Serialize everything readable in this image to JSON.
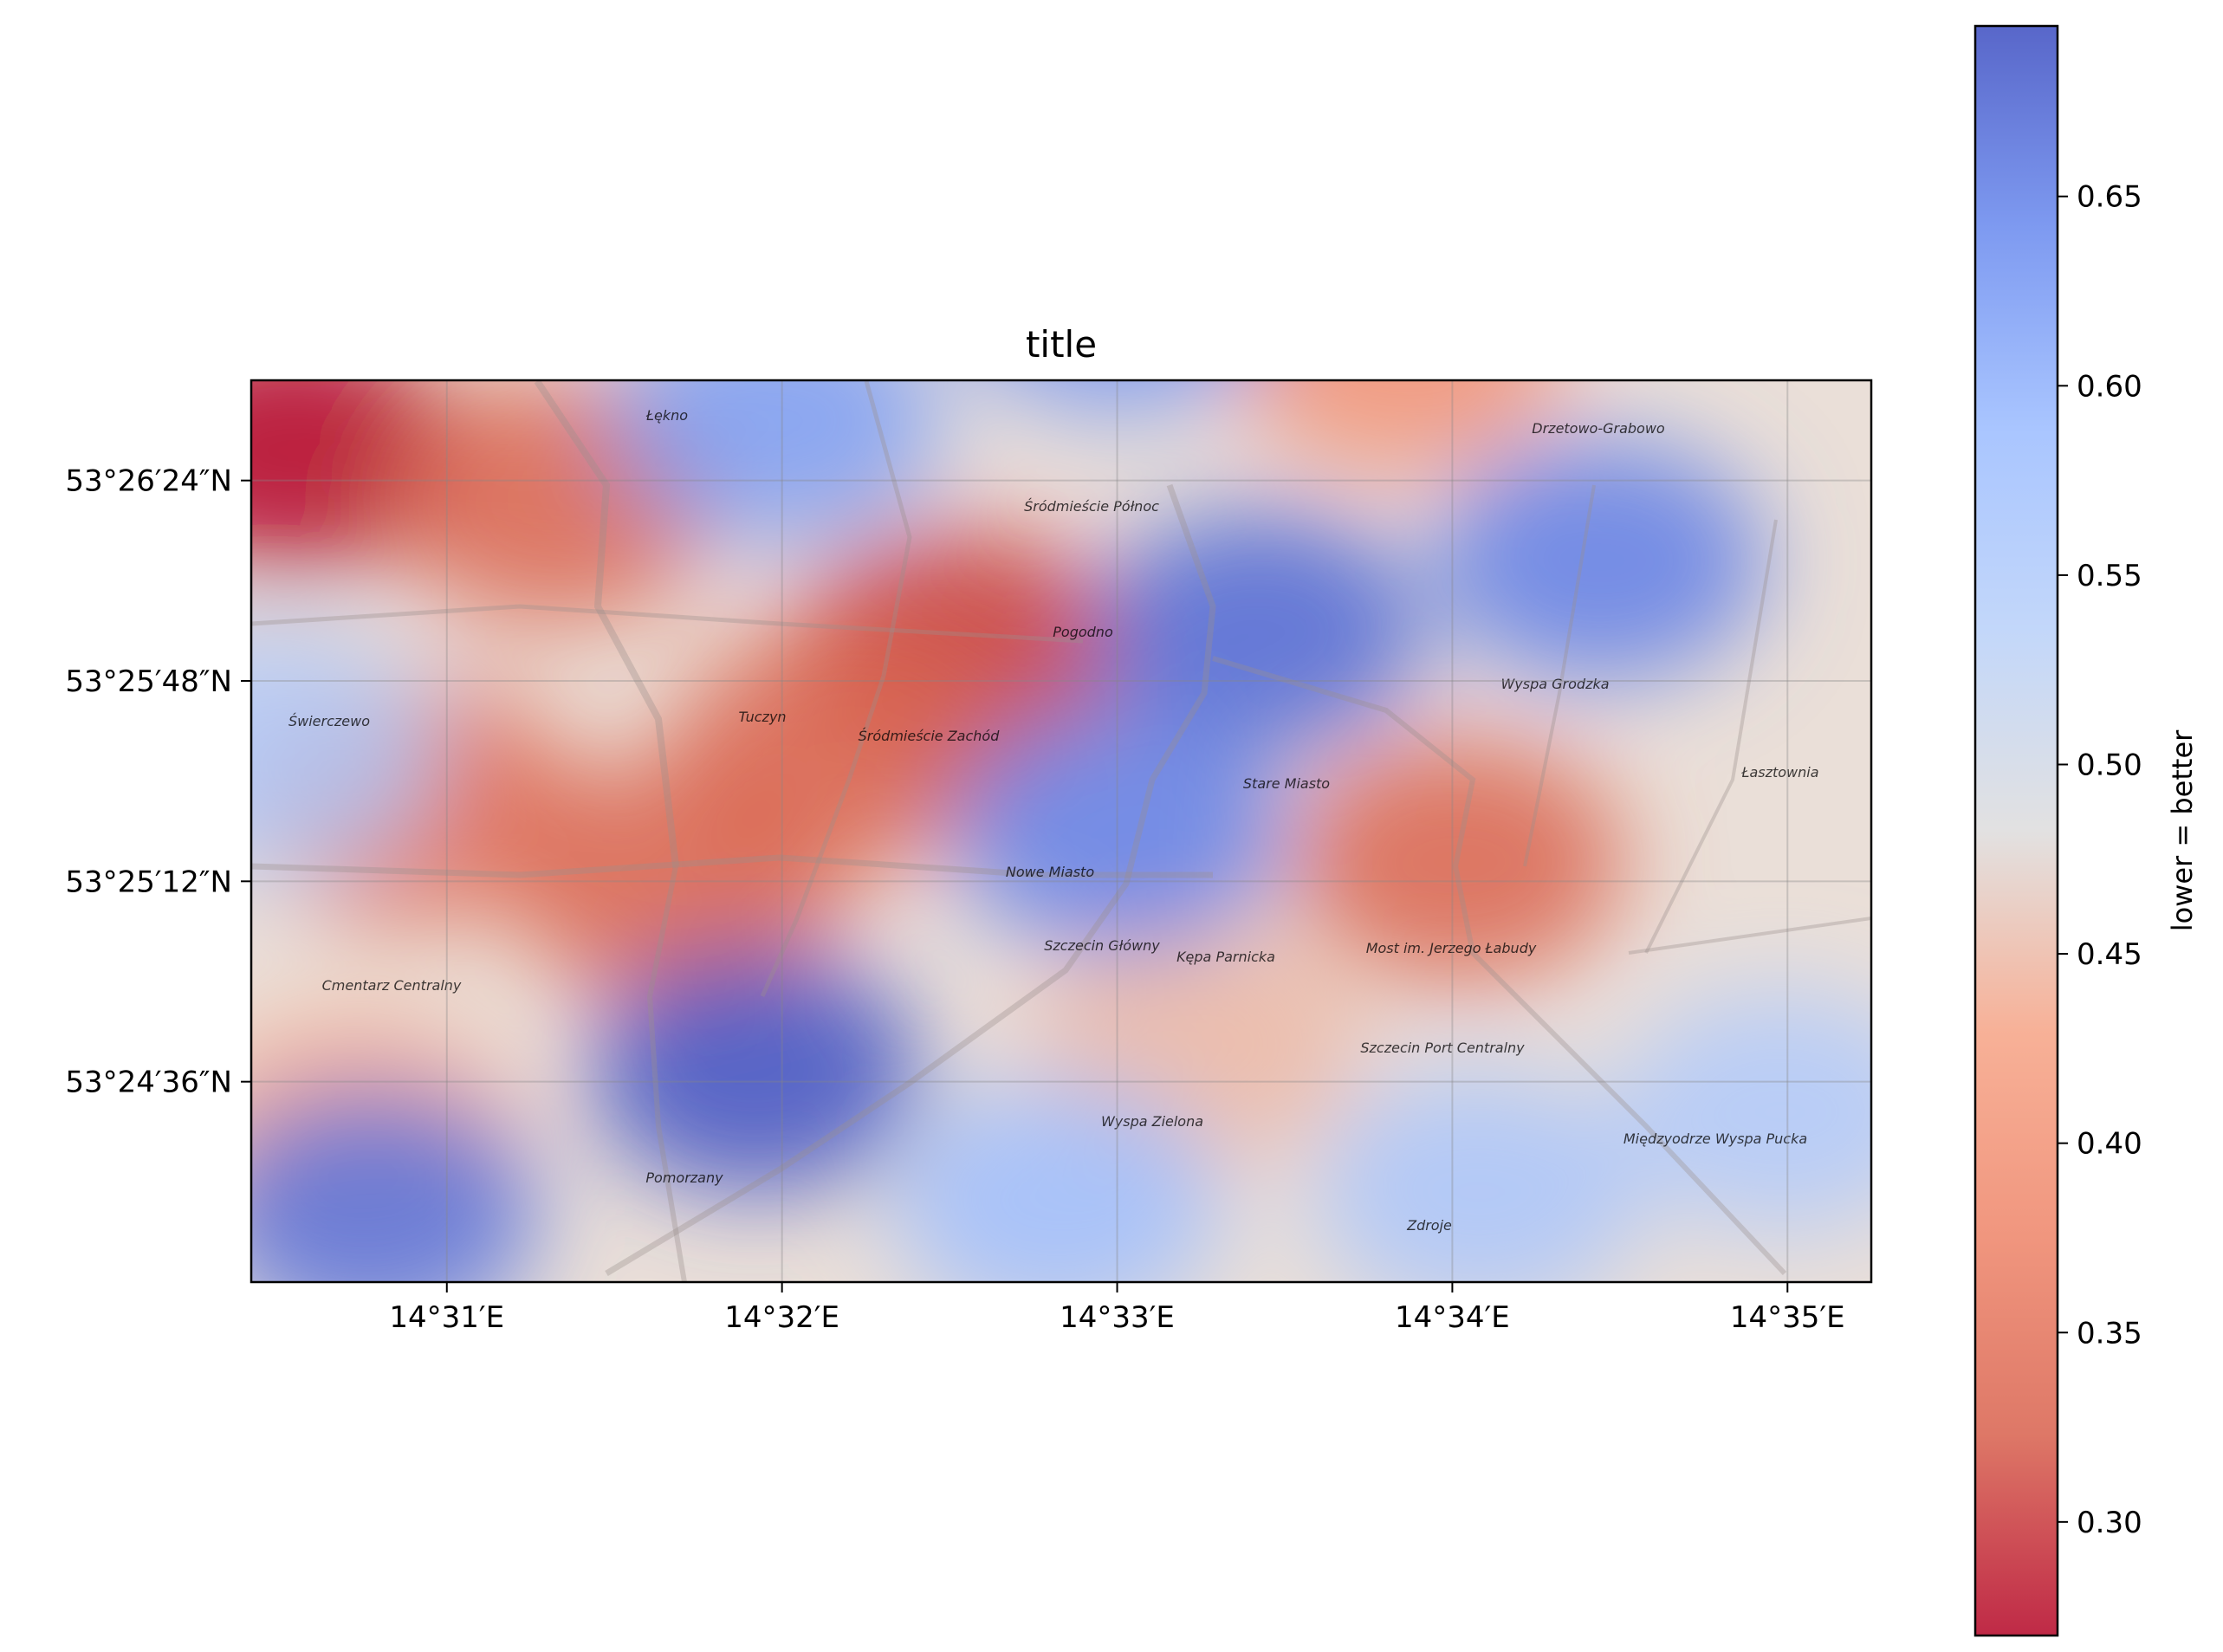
{
  "chart_data": {
    "type": "heatmap",
    "title": "title",
    "xlabel": "",
    "ylabel": "",
    "grid": true,
    "basemap_labels": [
      "Łękno",
      "Drzetowo-Grabowo",
      "Śródmieście Północ",
      "Pogodno",
      "Świerczewo",
      "Tuczyn",
      "Śródmieście Zachód",
      "Stare Miasto",
      "Wyspa Grodzka",
      "Łasztownia",
      "Nowe Miasto",
      "Cmentarz Centralny",
      "Szczecin Główny",
      "Kępa Parnicka",
      "Szczecin Port Centralny",
      "Wyspa Zielona",
      "Międzyodrze Wyspa Pucka",
      "Pomorzany",
      "Zdroje",
      "Most im. Jerzego Łabudy"
    ],
    "x_ticks": [
      "14°31′E",
      "14°32′E",
      "14°33′E",
      "14°34′E",
      "14°35′E"
    ],
    "y_ticks": [
      "53°26′24″N",
      "53°25′48″N",
      "53°25′12″N",
      "53°24′36″N"
    ],
    "colorbar": {
      "label": "lower = better",
      "colormap": "coolwarm_r",
      "min": 0.27,
      "max": 0.695,
      "ticks": [
        "0.30",
        "0.35",
        "0.40",
        "0.45",
        "0.50",
        "0.55",
        "0.60",
        "0.65"
      ],
      "tick_values": [
        0.3,
        0.35,
        0.4,
        0.45,
        0.5,
        0.55,
        0.6,
        0.65
      ]
    },
    "hotspots": [
      {
        "lon": 14.509,
        "lat": 53.4415,
        "value": 0.27
      },
      {
        "lon": 14.522,
        "lat": 53.439,
        "value": 0.33
      },
      {
        "lon": 14.542,
        "lat": 53.4315,
        "value": 0.3
      },
      {
        "lon": 14.536,
        "lat": 53.4265,
        "value": 0.33
      },
      {
        "lon": 14.515,
        "lat": 53.424,
        "value": 0.34
      },
      {
        "lon": 14.528,
        "lat": 53.42,
        "value": 0.33
      },
      {
        "lon": 14.567,
        "lat": 53.421,
        "value": 0.33
      },
      {
        "lon": 14.564,
        "lat": 53.4465,
        "value": 0.4
      },
      {
        "lon": 14.512,
        "lat": 53.407,
        "value": 0.43
      },
      {
        "lon": 14.554,
        "lat": 53.412,
        "value": 0.45
      },
      {
        "lon": 14.55,
        "lat": 53.4495,
        "value": 0.63
      },
      {
        "lon": 14.533,
        "lat": 53.443,
        "value": 0.62
      },
      {
        "lon": 14.557,
        "lat": 53.4325,
        "value": 0.67
      },
      {
        "lon": 14.574,
        "lat": 53.436,
        "value": 0.65
      },
      {
        "lon": 14.55,
        "lat": 53.4225,
        "value": 0.65
      },
      {
        "lon": 14.532,
        "lat": 53.4105,
        "value": 0.69
      },
      {
        "lon": 14.513,
        "lat": 53.4035,
        "value": 0.66
      },
      {
        "lon": 14.583,
        "lat": 53.4085,
        "value": 0.55
      },
      {
        "lon": 14.568,
        "lat": 53.4045,
        "value": 0.56
      },
      {
        "lon": 14.508,
        "lat": 53.4265,
        "value": 0.55
      },
      {
        "lon": 14.547,
        "lat": 53.404,
        "value": 0.58
      }
    ]
  }
}
